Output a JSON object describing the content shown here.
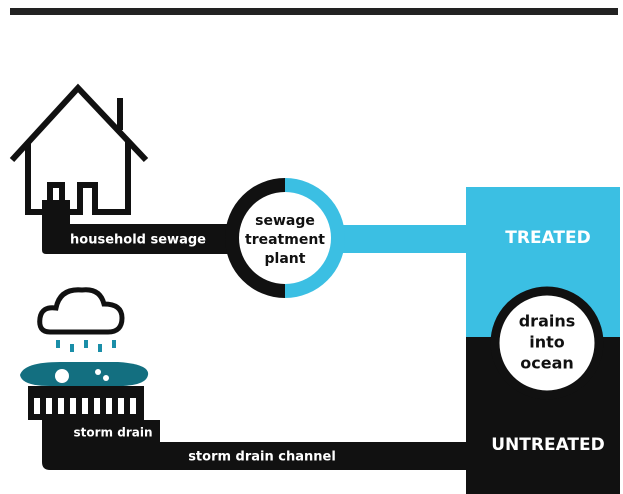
{
  "nodes": [
    {
      "label": "household sewage"
    },
    {
      "label": [
        "sewage",
        "treatment",
        "plant"
      ]
    },
    {
      "label": "TREATED"
    },
    {
      "label": [
        "drains",
        "into",
        "ocean"
      ]
    },
    {
      "label": "storm drain"
    },
    {
      "label": "storm drain channel"
    },
    {
      "label": "UNTREATED"
    }
  ]
}
